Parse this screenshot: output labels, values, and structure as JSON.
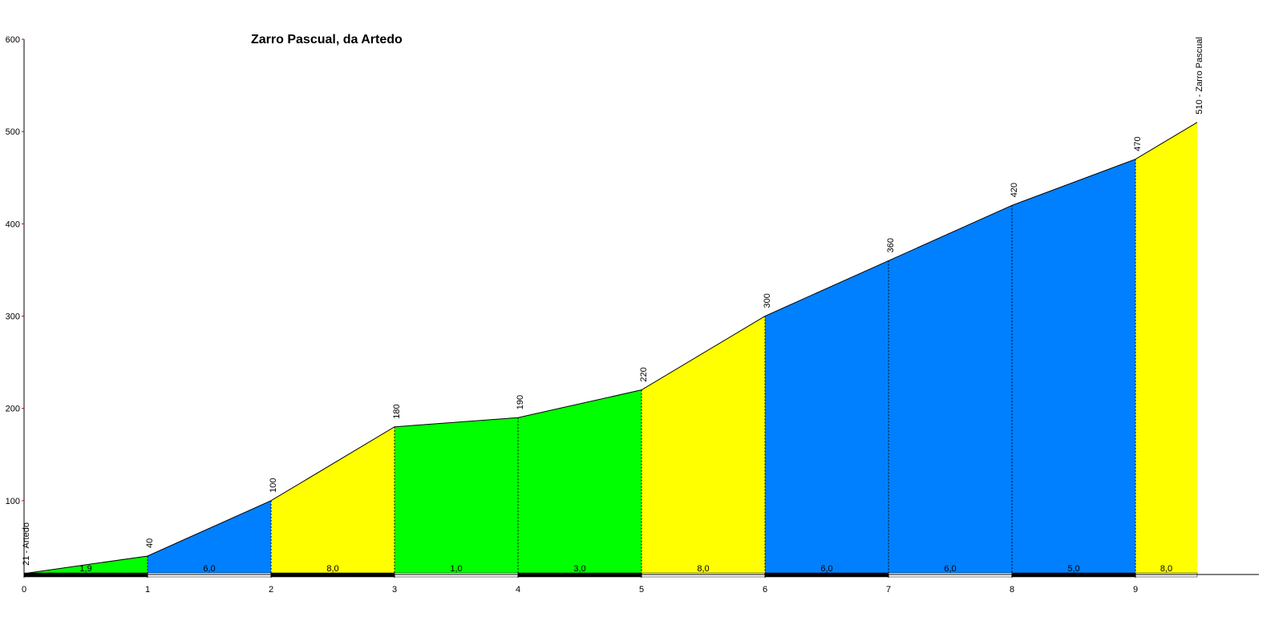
{
  "chart_data": {
    "type": "elevation-profile",
    "title": "Zarro Pascual, da Artedo",
    "x": [
      0,
      1,
      2,
      3,
      4,
      5,
      6,
      7,
      8,
      9,
      9.5
    ],
    "elevation": [
      21,
      40,
      100,
      180,
      190,
      220,
      300,
      360,
      420,
      470,
      510
    ],
    "elevation_labels": [
      "21 - Artedo",
      "40",
      "100",
      "180",
      "190",
      "220",
      "300",
      "360",
      "420",
      "470",
      "510 - Zarro Pascual"
    ],
    "gradients": [
      1.9,
      6.0,
      8.0,
      1.0,
      3.0,
      8.0,
      6.0,
      6.0,
      5.0,
      8.0
    ],
    "gradient_labels": [
      "1,9",
      "6,0",
      "8,0",
      "1,0",
      "3,0",
      "8,0",
      "6,0",
      "6,0",
      "5,0",
      "8,0"
    ],
    "segment_colors": [
      "#00ff00",
      "#0080ff",
      "#ffff00",
      "#00ff00",
      "#00ff00",
      "#ffff00",
      "#0080ff",
      "#0080ff",
      "#0080ff",
      "#ffff00"
    ],
    "xlim": [
      0,
      10
    ],
    "xticks": [
      0,
      1,
      2,
      3,
      4,
      5,
      6,
      7,
      8,
      9
    ],
    "ylim": [
      20,
      600
    ],
    "yticks": [
      100,
      200,
      300,
      400,
      500,
      600
    ]
  }
}
